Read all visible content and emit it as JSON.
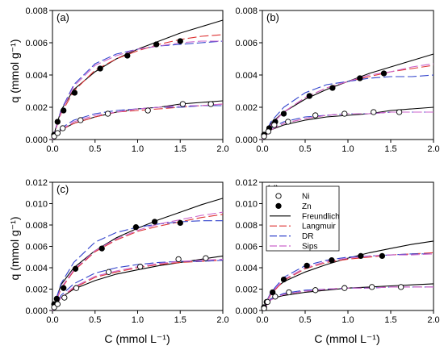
{
  "figure": {
    "xlabel": "C (mmol L⁻¹)",
    "ylabel": "q (mmol g⁻¹)"
  },
  "legend": {
    "entries": [
      {
        "label": "Ni",
        "kind": "marker",
        "fill": "open"
      },
      {
        "label": "Zn",
        "kind": "marker",
        "fill": "filled"
      },
      {
        "label": "Freundlich",
        "kind": "line",
        "color": "#000000",
        "dash": "solid"
      },
      {
        "label": "Langmuir",
        "kind": "line",
        "color": "#dd3333",
        "dash": "long"
      },
      {
        "label": "DR",
        "kind": "line",
        "color": "#3344cc",
        "dash": "long"
      },
      {
        "label": "Sips",
        "kind": "line",
        "color": "#cc66cc",
        "dash": "long"
      }
    ],
    "panel": "d",
    "placement": "top-left"
  },
  "chart_data": [
    {
      "panel": "(a)",
      "type": "scatter",
      "xlim": [
        0,
        2.0
      ],
      "ylim": [
        0,
        0.008
      ],
      "xticks": [
        "0.0",
        "0.5",
        "1.0",
        "1.5",
        "2.0"
      ],
      "yticks": [
        "0.000",
        "0.002",
        "0.004",
        "0.006",
        "0.008"
      ],
      "series": [
        {
          "name": "Zn",
          "marker": "filled",
          "x": [
            0.02,
            0.06,
            0.13,
            0.26,
            0.56,
            0.88,
            1.22,
            1.5
          ],
          "y": [
            0.0003,
            0.0011,
            0.0018,
            0.0029,
            0.0044,
            0.0052,
            0.0059,
            0.0061
          ]
        },
        {
          "name": "Ni",
          "marker": "open",
          "x": [
            0.02,
            0.06,
            0.12,
            0.33,
            0.65,
            1.12,
            1.53,
            1.86
          ],
          "y": [
            0.0002,
            0.0004,
            0.0007,
            0.0012,
            0.0016,
            0.0018,
            0.0022,
            0.0022
          ]
        }
      ],
      "fits": [
        {
          "name": "Freundlich",
          "x": [
            0,
            0.1,
            0.25,
            0.5,
            0.75,
            1.0,
            1.25,
            1.5,
            1.75,
            2.0
          ],
          "zn": [
            0,
            0.0018,
            0.0031,
            0.0042,
            0.005,
            0.0056,
            0.0061,
            0.0066,
            0.007,
            0.0074
          ],
          "ni": [
            0,
            0.0006,
            0.001,
            0.0014,
            0.0017,
            0.0019,
            0.002,
            0.0022,
            0.0023,
            0.0024
          ]
        },
        {
          "name": "Langmuir",
          "x": [
            0,
            0.1,
            0.25,
            0.5,
            0.75,
            1.0,
            1.25,
            1.5,
            1.75,
            2.0
          ],
          "zn": [
            0,
            0.0016,
            0.003,
            0.0043,
            0.005,
            0.0055,
            0.0059,
            0.0062,
            0.0064,
            0.0065
          ],
          "ni": [
            0,
            0.0006,
            0.001,
            0.0014,
            0.0017,
            0.0018,
            0.0019,
            0.002,
            0.0021,
            0.0022
          ]
        },
        {
          "name": "DR",
          "x": [
            0,
            0.1,
            0.25,
            0.5,
            0.75,
            1.0,
            1.25,
            1.5,
            1.75,
            2.0
          ],
          "zn": [
            0,
            0.0018,
            0.0034,
            0.0047,
            0.0053,
            0.0056,
            0.0058,
            0.0059,
            0.006,
            0.0061
          ],
          "ni": [
            0,
            0.0007,
            0.0012,
            0.0016,
            0.0018,
            0.0019,
            0.002,
            0.002,
            0.0021,
            0.0021
          ]
        },
        {
          "name": "Sips",
          "x": [
            0,
            0.1,
            0.25,
            0.5,
            0.75,
            1.0,
            1.25,
            1.5,
            1.75,
            2.0
          ],
          "zn": [
            0,
            0.0017,
            0.0033,
            0.0046,
            0.0052,
            0.0056,
            0.0058,
            0.006,
            0.0061,
            0.0061
          ],
          "ni": [
            0,
            0.0006,
            0.0011,
            0.0015,
            0.0017,
            0.0019,
            0.002,
            0.0021,
            0.0021,
            0.0022
          ]
        }
      ]
    },
    {
      "panel": "(b)",
      "type": "scatter",
      "xlim": [
        0,
        2.0
      ],
      "ylim": [
        0,
        0.008
      ],
      "xticks": [
        "0.0",
        "0.5",
        "1.0",
        "1.5",
        "2.0"
      ],
      "yticks": [
        "0.000",
        "0.002",
        "0.004",
        "0.006",
        "0.008"
      ],
      "series": [
        {
          "name": "Zn",
          "marker": "filled",
          "x": [
            0.02,
            0.08,
            0.15,
            0.25,
            0.55,
            0.82,
            1.14,
            1.42
          ],
          "y": [
            0.0003,
            0.0007,
            0.0011,
            0.0016,
            0.0027,
            0.0032,
            0.0038,
            0.0041
          ]
        },
        {
          "name": "Ni",
          "marker": "open",
          "x": [
            0.02,
            0.07,
            0.14,
            0.3,
            0.62,
            0.96,
            1.3,
            1.6
          ],
          "y": [
            0.0002,
            0.0005,
            0.0009,
            0.0011,
            0.0015,
            0.0016,
            0.0017,
            0.0017
          ]
        }
      ],
      "fits": [
        {
          "name": "Freundlich",
          "x": [
            0,
            0.1,
            0.25,
            0.5,
            0.75,
            1.0,
            1.25,
            1.5,
            1.75,
            2.0
          ],
          "zn": [
            0,
            0.001,
            0.0017,
            0.0025,
            0.0031,
            0.0036,
            0.0041,
            0.0045,
            0.0049,
            0.0053
          ],
          "ni": [
            0,
            0.0006,
            0.0009,
            0.0012,
            0.0014,
            0.0015,
            0.0016,
            0.0018,
            0.0019,
            0.002
          ]
        },
        {
          "name": "Langmuir",
          "x": [
            0,
            0.1,
            0.25,
            0.5,
            0.75,
            1.0,
            1.25,
            1.5,
            1.75,
            2.0
          ],
          "zn": [
            0,
            0.0009,
            0.0017,
            0.0026,
            0.0032,
            0.0036,
            0.0039,
            0.0042,
            0.0044,
            0.0046
          ],
          "ni": [
            0,
            0.0006,
            0.001,
            0.0013,
            0.0015,
            0.0016,
            0.0016,
            0.0017,
            0.0017,
            0.0017
          ]
        },
        {
          "name": "DR",
          "x": [
            0,
            0.1,
            0.25,
            0.5,
            0.75,
            1.0,
            1.25,
            1.5,
            1.75,
            2.0
          ],
          "zn": [
            0,
            0.0011,
            0.002,
            0.0029,
            0.0034,
            0.0036,
            0.0038,
            0.0039,
            0.0039,
            0.004
          ],
          "ni": [
            0,
            0.0007,
            0.0011,
            0.0014,
            0.0015,
            0.0016,
            0.0016,
            0.0017,
            0.0017,
            0.0017
          ]
        },
        {
          "name": "Sips",
          "x": [
            0,
            0.1,
            0.25,
            0.5,
            0.75,
            1.0,
            1.25,
            1.5,
            1.75,
            2.0
          ],
          "zn": [
            0,
            0.0009,
            0.0017,
            0.0026,
            0.0032,
            0.0036,
            0.004,
            0.0042,
            0.0045,
            0.0047
          ],
          "ni": [
            0,
            0.0006,
            0.001,
            0.0013,
            0.0015,
            0.0016,
            0.0016,
            0.0017,
            0.0017,
            0.0017
          ]
        }
      ]
    },
    {
      "panel": "(c)",
      "type": "scatter",
      "xlim": [
        0,
        2.0
      ],
      "ylim": [
        0,
        0.012
      ],
      "xticks": [
        "0.0",
        "0.5",
        "1.0",
        "1.5",
        "2.0"
      ],
      "yticks": [
        "0.000",
        "0.002",
        "0.004",
        "0.006",
        "0.008",
        "0.010",
        "0.012"
      ],
      "series": [
        {
          "name": "Zn",
          "marker": "filled",
          "x": [
            0.02,
            0.05,
            0.13,
            0.27,
            0.58,
            0.98,
            1.2,
            1.5
          ],
          "y": [
            0.0006,
            0.0011,
            0.0021,
            0.0039,
            0.0058,
            0.0078,
            0.0083,
            0.0082
          ]
        },
        {
          "name": "Ni",
          "marker": "open",
          "x": [
            0.02,
            0.06,
            0.14,
            0.28,
            0.66,
            1.03,
            1.48,
            1.8
          ],
          "y": [
            0.0003,
            0.0006,
            0.0012,
            0.0021,
            0.0036,
            0.0041,
            0.0048,
            0.0049
          ]
        }
      ],
      "fits": [
        {
          "name": "Freundlich",
          "x": [
            0,
            0.1,
            0.25,
            0.5,
            0.75,
            1.0,
            1.25,
            1.5,
            1.75,
            2.0
          ],
          "zn": [
            0,
            0.0024,
            0.004,
            0.0056,
            0.0068,
            0.0077,
            0.0085,
            0.0092,
            0.0099,
            0.0105
          ],
          "ni": [
            0,
            0.0012,
            0.002,
            0.0028,
            0.0034,
            0.0038,
            0.0042,
            0.0045,
            0.0048,
            0.0051
          ]
        },
        {
          "name": "Langmuir",
          "x": [
            0,
            0.1,
            0.25,
            0.5,
            0.75,
            1.0,
            1.25,
            1.5,
            1.75,
            2.0
          ],
          "zn": [
            0,
            0.002,
            0.0037,
            0.0055,
            0.0066,
            0.0074,
            0.0079,
            0.0083,
            0.0087,
            0.009
          ],
          "ni": [
            0,
            0.0012,
            0.0021,
            0.0031,
            0.0036,
            0.004,
            0.0043,
            0.0045,
            0.0046,
            0.0047
          ]
        },
        {
          "name": "DR",
          "x": [
            0,
            0.1,
            0.25,
            0.5,
            0.75,
            1.0,
            1.25,
            1.5,
            1.75,
            2.0
          ],
          "zn": [
            0,
            0.0025,
            0.0045,
            0.0064,
            0.0073,
            0.0078,
            0.0081,
            0.0083,
            0.0084,
            0.0084
          ],
          "ni": [
            0,
            0.0014,
            0.0025,
            0.0035,
            0.004,
            0.0043,
            0.0045,
            0.0046,
            0.0046,
            0.0047
          ]
        },
        {
          "name": "Sips",
          "x": [
            0,
            0.1,
            0.25,
            0.5,
            0.75,
            1.0,
            1.25,
            1.5,
            1.75,
            2.0
          ],
          "zn": [
            0,
            0.0021,
            0.0038,
            0.0056,
            0.0067,
            0.0075,
            0.0081,
            0.0085,
            0.0089,
            0.0092
          ],
          "ni": [
            0,
            0.0012,
            0.0022,
            0.0032,
            0.0037,
            0.0041,
            0.0044,
            0.0046,
            0.0047,
            0.0048
          ]
        }
      ]
    },
    {
      "panel": "(d)",
      "type": "scatter",
      "xlim": [
        0,
        2.0
      ],
      "ylim": [
        0,
        0.012
      ],
      "xticks": [
        "0.0",
        "0.5",
        "1.0",
        "1.5",
        "2.0"
      ],
      "yticks": [
        "0.000",
        "0.002",
        "0.004",
        "0.006",
        "0.008",
        "0.010",
        "0.012"
      ],
      "series": [
        {
          "name": "Zn",
          "marker": "filled",
          "x": [
            0.02,
            0.05,
            0.12,
            0.25,
            0.52,
            0.81,
            1.15,
            1.4
          ],
          "y": [
            0.0003,
            0.0008,
            0.0017,
            0.0029,
            0.0042,
            0.0047,
            0.0051,
            0.0051
          ]
        },
        {
          "name": "Ni",
          "marker": "open",
          "x": [
            0.02,
            0.06,
            0.15,
            0.31,
            0.62,
            0.96,
            1.28,
            1.62
          ],
          "y": [
            0.0002,
            0.0008,
            0.0013,
            0.0017,
            0.0019,
            0.0021,
            0.0022,
            0.0022
          ]
        }
      ],
      "fits": [
        {
          "name": "Freundlich",
          "x": [
            0,
            0.1,
            0.25,
            0.5,
            0.75,
            1.0,
            1.25,
            1.5,
            1.75,
            2.0
          ],
          "zn": [
            0,
            0.0017,
            0.0027,
            0.0036,
            0.0043,
            0.0049,
            0.0054,
            0.0058,
            0.0062,
            0.0065
          ],
          "ni": [
            0,
            0.0011,
            0.0014,
            0.0017,
            0.0019,
            0.0021,
            0.0022,
            0.0023,
            0.0024,
            0.0025
          ]
        },
        {
          "name": "Langmuir",
          "x": [
            0,
            0.1,
            0.25,
            0.5,
            0.75,
            1.0,
            1.25,
            1.5,
            1.75,
            2.0
          ],
          "zn": [
            0,
            0.0015,
            0.0028,
            0.0039,
            0.0045,
            0.0048,
            0.005,
            0.0052,
            0.0053,
            0.0054
          ],
          "ni": [
            0,
            0.001,
            0.0015,
            0.0018,
            0.002,
            0.0021,
            0.0021,
            0.0022,
            0.0022,
            0.0022
          ]
        },
        {
          "name": "DR",
          "x": [
            0,
            0.1,
            0.25,
            0.5,
            0.75,
            1.0,
            1.25,
            1.5,
            1.75,
            2.0
          ],
          "zn": [
            0,
            0.0017,
            0.0031,
            0.0042,
            0.0047,
            0.005,
            0.0051,
            0.0052,
            0.0053,
            0.0053
          ],
          "ni": [
            0,
            0.0011,
            0.0016,
            0.0019,
            0.002,
            0.0021,
            0.0021,
            0.0022,
            0.0022,
            0.0022
          ]
        },
        {
          "name": "Sips",
          "x": [
            0,
            0.1,
            0.25,
            0.5,
            0.75,
            1.0,
            1.25,
            1.5,
            1.75,
            2.0
          ],
          "zn": [
            0,
            0.0016,
            0.0029,
            0.004,
            0.0046,
            0.0049,
            0.0051,
            0.0052,
            0.0052,
            0.0053
          ],
          "ni": [
            0,
            0.001,
            0.0015,
            0.0018,
            0.002,
            0.0021,
            0.0021,
            0.0022,
            0.0022,
            0.0022
          ]
        }
      ]
    }
  ]
}
